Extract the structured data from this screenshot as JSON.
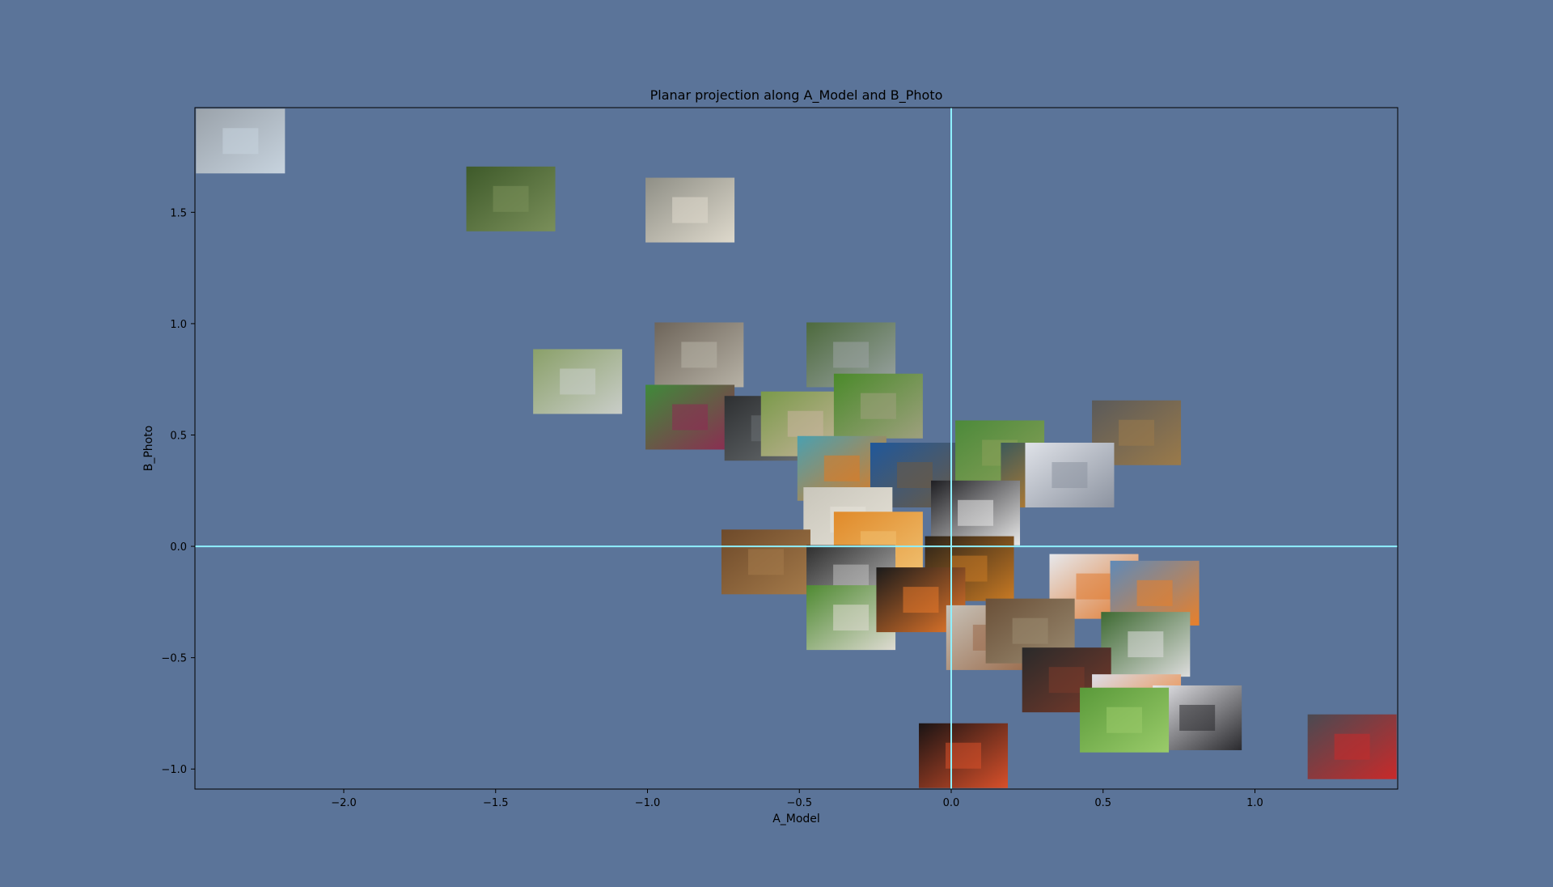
{
  "chart_data": {
    "type": "scatter",
    "title": "Planar projection along A_Model and B_Photo",
    "xlabel": "A_Model",
    "ylabel": "B_Photo",
    "xlim": [
      -2.49,
      1.47
    ],
    "ylim": [
      -1.09,
      1.97
    ],
    "xticks": [
      -2.0,
      -1.5,
      -1.0,
      -0.5,
      0.0,
      0.5,
      1.0
    ],
    "xtick_labels": [
      "−2.0",
      "−1.5",
      "−1.0",
      "−0.5",
      "0.0",
      "0.5",
      "1.0"
    ],
    "yticks": [
      -1.0,
      -0.5,
      0.0,
      0.5,
      1.0,
      1.5
    ],
    "ytick_labels": [
      "−1.0",
      "−0.5",
      "0.0",
      "0.5",
      "1.0",
      "1.5"
    ],
    "reference_lines": {
      "x": 0.0,
      "y": 0.0,
      "color": "#8ff0ff"
    },
    "grid": false,
    "background": "#5b7499",
    "points": [
      {
        "x": -2.34,
        "y": 1.82,
        "thumb": "boardwalk-railing-bench",
        "c1": "#9aa2aa",
        "c2": "#c7d3de"
      },
      {
        "x": -1.45,
        "y": 1.56,
        "thumb": "park-tree-bench",
        "c1": "#3e5a2a",
        "c2": "#7a8f5a"
      },
      {
        "x": -0.86,
        "y": 1.51,
        "thumb": "man-on-bench",
        "c1": "#8f8f86",
        "c2": "#ded9cc"
      },
      {
        "x": -1.23,
        "y": 0.74,
        "thumb": "white-bench-grass",
        "c1": "#8aa069",
        "c2": "#c9cdc8"
      },
      {
        "x": -0.83,
        "y": 0.86,
        "thumb": "ostrich-building",
        "c1": "#6e655a",
        "c2": "#b7b2a6"
      },
      {
        "x": -0.33,
        "y": 0.86,
        "thumb": "park-path-bench",
        "c1": "#4d6a3d",
        "c2": "#9aa3a3"
      },
      {
        "x": -0.86,
        "y": 0.58,
        "thumb": "red-bench-grass",
        "c1": "#3f8a3a",
        "c2": "#8e2a53"
      },
      {
        "x": -0.6,
        "y": 0.53,
        "thumb": "dark-scene",
        "c1": "#2e3032",
        "c2": "#6a6f72"
      },
      {
        "x": -0.48,
        "y": 0.55,
        "thumb": "ostrich-head",
        "c1": "#7a9a4a",
        "c2": "#c8b49e"
      },
      {
        "x": -0.24,
        "y": 0.63,
        "thumb": "emu-grass",
        "c1": "#4a8a2a",
        "c2": "#9ea07e"
      },
      {
        "x": -0.36,
        "y": 0.35,
        "thumb": "goldfish-teal",
        "c1": "#4aa0b0",
        "c2": "#e07a20"
      },
      {
        "x": -0.12,
        "y": 0.32,
        "thumb": "tennis-player-blue",
        "c1": "#20589a",
        "c2": "#6b5a44"
      },
      {
        "x": 0.16,
        "y": 0.42,
        "thumb": "grass-field",
        "c1": "#4c8a3a",
        "c2": "#8aa05a"
      },
      {
        "x": 0.31,
        "y": 0.32,
        "thumb": "goldfish-dark",
        "c1": "#3c5a5a",
        "c2": "#e88a20"
      },
      {
        "x": -0.34,
        "y": 0.12,
        "thumb": "white-texture",
        "c1": "#c9c6bb",
        "c2": "#e6e2d8"
      },
      {
        "x": 0.08,
        "y": 0.15,
        "thumb": "black-crow",
        "c1": "#1e1e22",
        "c2": "#e8e8e8"
      },
      {
        "x": -0.24,
        "y": 0.01,
        "thumb": "goldfish-orange",
        "c1": "#e08a2a",
        "c2": "#f0c070"
      },
      {
        "x": -0.61,
        "y": -0.07,
        "thumb": "chicken-dirt",
        "c1": "#6e4a2a",
        "c2": "#a47a4a"
      },
      {
        "x": -0.33,
        "y": -0.14,
        "thumb": "zebra-pattern",
        "c1": "#2e2e2e",
        "c2": "#bdbdbd"
      },
      {
        "x": 0.06,
        "y": -0.1,
        "thumb": "goldfish-night",
        "c1": "#2a2218",
        "c2": "#c87a24"
      },
      {
        "x": 0.47,
        "y": -0.18,
        "thumb": "goldfish-white",
        "c1": "#e6e8ec",
        "c2": "#e07a30"
      },
      {
        "x": 0.67,
        "y": -0.21,
        "thumb": "goldfish-blue",
        "c1": "#5f8ab8",
        "c2": "#e8802a"
      },
      {
        "x": -0.33,
        "y": -0.32,
        "thumb": "white-hen-grass",
        "c1": "#4f8a32",
        "c2": "#dedbd2"
      },
      {
        "x": -0.1,
        "y": -0.24,
        "thumb": "goldfish-black",
        "c1": "#1b1b1b",
        "c2": "#e8782a"
      },
      {
        "x": 0.13,
        "y": -0.41,
        "thumb": "hens-white",
        "c1": "#c7c2b8",
        "c2": "#9a6a4a"
      },
      {
        "x": 0.26,
        "y": -0.38,
        "thumb": "wood-crate",
        "c1": "#6a5038",
        "c2": "#9a8a70"
      },
      {
        "x": 0.64,
        "y": -0.44,
        "thumb": "tennis-grass-court",
        "c1": "#3e6a32",
        "c2": "#dcdcdc"
      },
      {
        "x": 0.38,
        "y": -0.6,
        "thumb": "rooster-dark",
        "c1": "#2a2a2a",
        "c2": "#7a3a2a"
      },
      {
        "x": 0.61,
        "y": -0.72,
        "thumb": "goldfish-pair",
        "c1": "#dcdce6",
        "c2": "#f07a20"
      },
      {
        "x": 0.81,
        "y": -0.77,
        "thumb": "black-hen-white",
        "c1": "#e8e8ec",
        "c2": "#2a2a2e"
      },
      {
        "x": 0.57,
        "y": -0.78,
        "thumb": "grass-corner",
        "c1": "#5a9a3a",
        "c2": "#9acb6a"
      },
      {
        "x": 0.04,
        "y": -0.94,
        "thumb": "koi-pond",
        "c1": "#1a1414",
        "c2": "#d8502a"
      },
      {
        "x": 1.32,
        "y": -0.9,
        "thumb": "tennis-player-court",
        "c1": "#4a4a52",
        "c2": "#c82a2a"
      },
      {
        "x": 0.61,
        "y": 0.51,
        "thumb": "bench-dead-trees",
        "c1": "#5a5a5a",
        "c2": "#9a7a4a"
      },
      {
        "x": 0.39,
        "y": 0.32,
        "thumb": "window-frame",
        "c1": "#dfe2e8",
        "c2": "#8c93a0"
      }
    ]
  }
}
